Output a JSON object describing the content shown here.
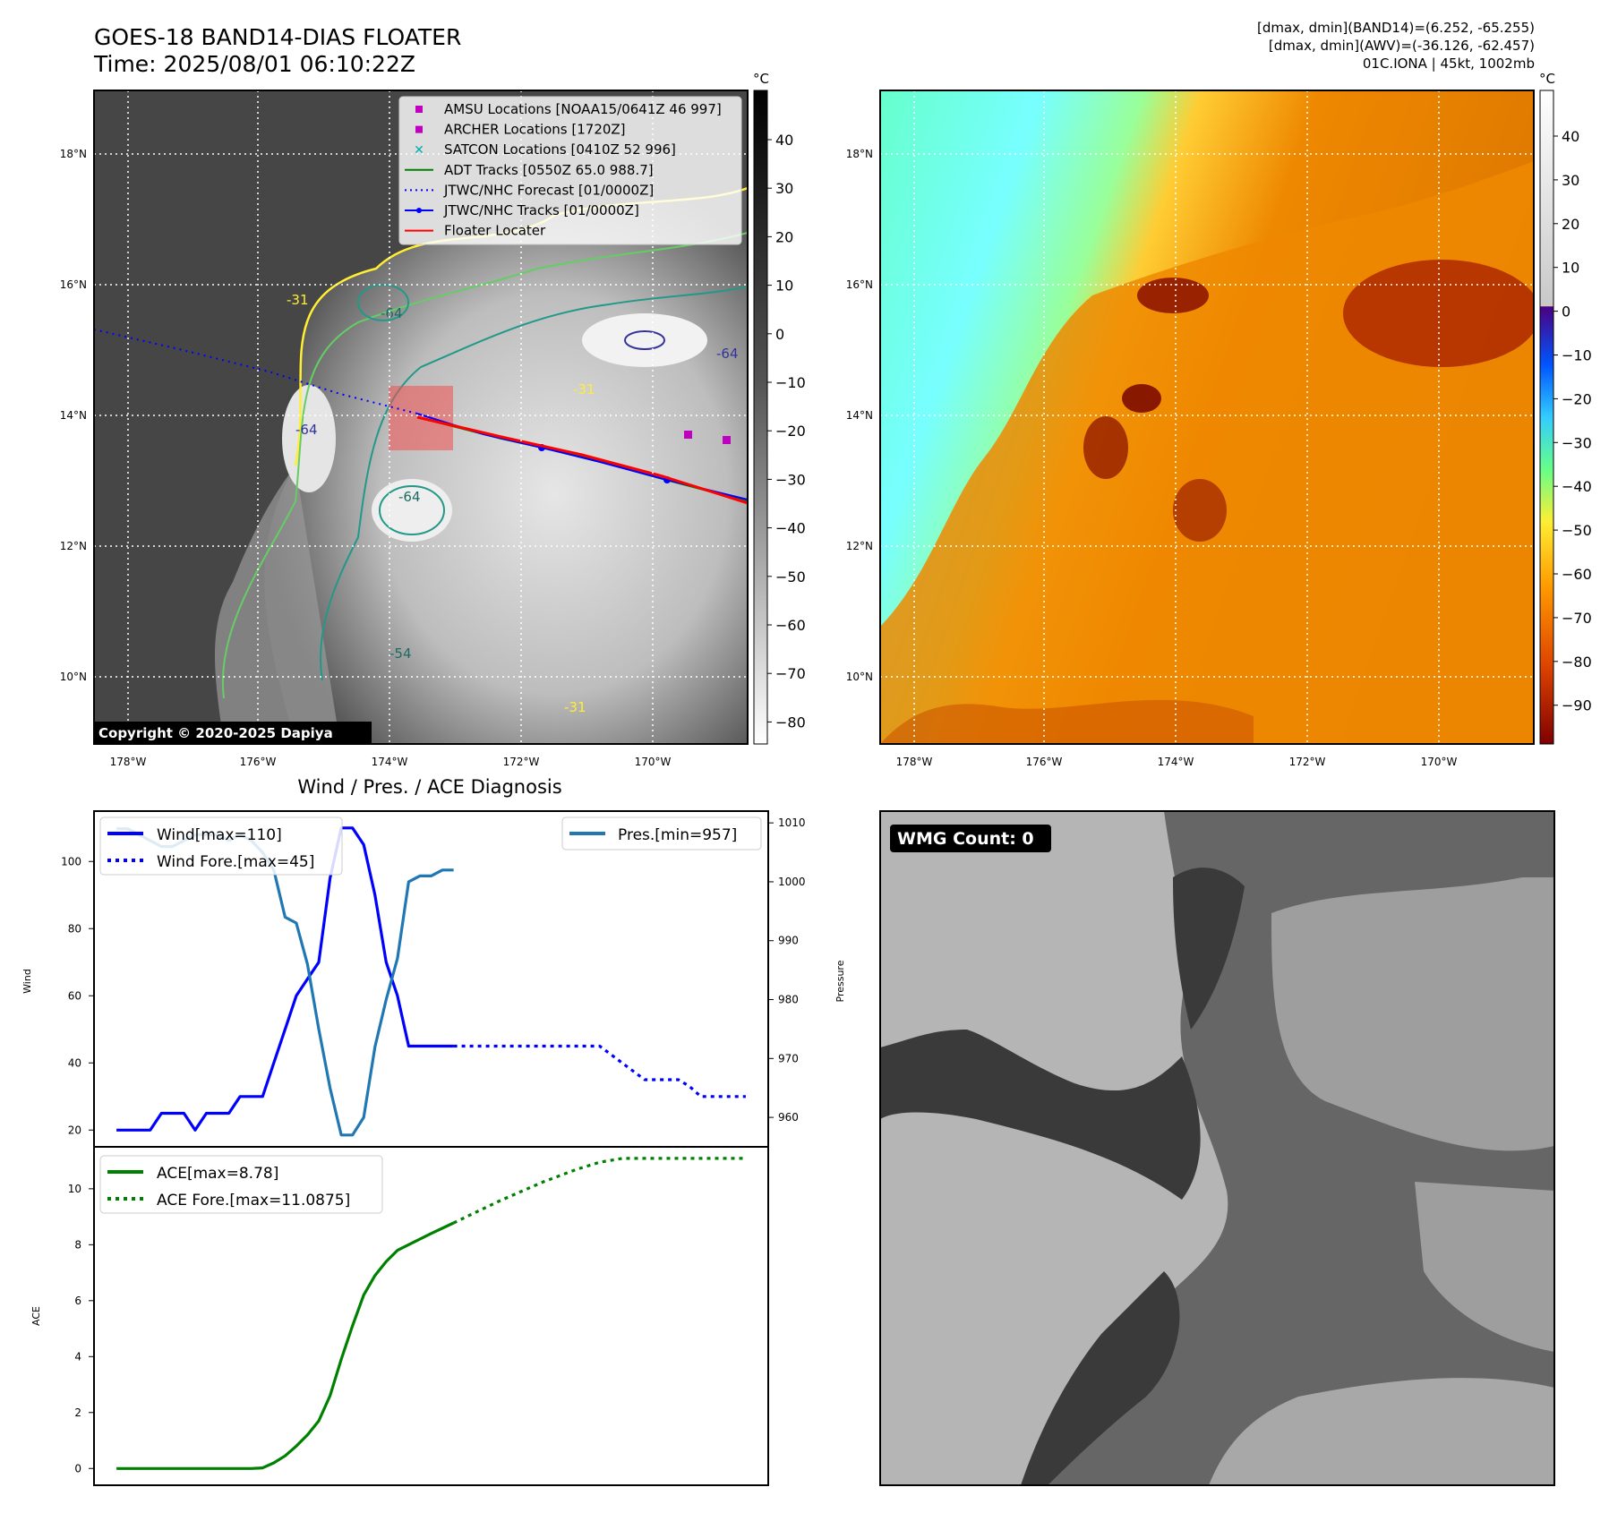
{
  "header": {
    "title": "GOES-18 BAND14-DIAS FLOATER",
    "time": "Time: 2025/08/01 06:10:22Z",
    "info_lines": [
      "[dmax, dmin](BAND14)=(6.252, -65.255)",
      "[dmax, dmin](AWV)=(-36.126, -62.457)",
      "01C.IONA | 45kt, 1002mb"
    ]
  },
  "copyright": "Copyright © 2020-2025 Dapiya",
  "colors": {
    "adt": "#008000",
    "forecast": "#0000ff",
    "track": "#0000ff",
    "locater": "#ff0000",
    "amsu": "#c000c0",
    "satcon": "#00b0b0",
    "pres": "#1f77b4",
    "ace": "#008000"
  },
  "map": {
    "lon_ticks": [
      "178°W",
      "176°W",
      "174°W",
      "172°W",
      "170°W"
    ],
    "lat_ticks": [
      "18°N",
      "16°N",
      "14°N",
      "12°N",
      "10°N"
    ],
    "legend": [
      {
        "label": "AMSU Locations [NOAA15/0641Z 46 997]",
        "symbol": "square",
        "color": "#c000c0"
      },
      {
        "label": "ARCHER Locations [1720Z]",
        "symbol": "square",
        "color": "#c000c0"
      },
      {
        "label": "SATCON Locations [0410Z 52 996]",
        "symbol": "x",
        "color": "#00b0b0"
      },
      {
        "label": "ADT Tracks [0550Z 65.0 988.7]",
        "symbol": "line",
        "color": "#008000"
      },
      {
        "label": "JTWC/NHC Forecast [01/0000Z]",
        "symbol": "dotted",
        "color": "#0000ff"
      },
      {
        "label": "JTWC/NHC Tracks [01/0000Z]",
        "symbol": "line-dot",
        "color": "#0000ff"
      },
      {
        "label": "Floater Locater",
        "symbol": "line",
        "color": "#ff0000"
      }
    ],
    "contour_labels": [
      "-31",
      "-64",
      "-64",
      "-64",
      "-54",
      "-31",
      "-31",
      "-64"
    ]
  },
  "colorbar_left": {
    "unit": "°C",
    "ticks": [
      "40",
      "30",
      "20",
      "10",
      "0",
      "−10",
      "−20",
      "−30",
      "−40",
      "−50",
      "−60",
      "−70",
      "−80"
    ]
  },
  "colorbar_right": {
    "unit": "°C",
    "ticks": [
      "40",
      "30",
      "20",
      "10",
      "0",
      "−10",
      "−20",
      "−30",
      "−40",
      "−50",
      "−60",
      "−70",
      "−80",
      "−90"
    ]
  },
  "wmg_panel": {
    "label": "WMG Count: 0"
  },
  "chart_data": [
    {
      "type": "line",
      "title": "Wind / Pres. / ACE Diagnosis",
      "ylabel": "Wind",
      "y2label": "Pressure",
      "ylim": [
        15,
        115
      ],
      "y2lim": [
        955,
        1012
      ],
      "series": [
        {
          "name": "Wind[max=110]",
          "axis": "left",
          "style": "solid",
          "color": "#0000ff",
          "x": [
            0,
            1,
            2,
            3,
            4,
            5,
            6,
            7,
            8,
            9,
            10,
            11,
            12,
            13,
            14,
            15,
            16,
            17,
            18,
            19,
            20,
            21,
            22,
            23,
            24,
            25,
            26,
            27,
            28,
            29,
            30
          ],
          "y": [
            20,
            20,
            20,
            20,
            25,
            25,
            25,
            20,
            25,
            25,
            25,
            30,
            30,
            30,
            40,
            50,
            60,
            65,
            70,
            95,
            110,
            110,
            105,
            90,
            70,
            60,
            45,
            45,
            45,
            45,
            45
          ]
        },
        {
          "name": "Wind Fore.[max=45]",
          "axis": "left",
          "style": "dotted",
          "color": "#0000ff",
          "x": [
            30,
            34,
            38,
            41,
            43,
            45,
            47,
            48,
            50,
            51,
            52,
            54,
            56
          ],
          "y": [
            45,
            45,
            45,
            45,
            45,
            40,
            35,
            35,
            35,
            33,
            30,
            30,
            30
          ]
        },
        {
          "name": "Pres.[min=957]",
          "axis": "right",
          "style": "solid",
          "color": "#1f77b4",
          "x": [
            0,
            1,
            2,
            3,
            4,
            5,
            6,
            7,
            8,
            9,
            10,
            11,
            12,
            13,
            14,
            15,
            16,
            17,
            18,
            19,
            20,
            21,
            22,
            23,
            24,
            25,
            26,
            27,
            28,
            29,
            30
          ],
          "y": [
            1009,
            1009,
            1008,
            1007,
            1006,
            1006,
            1007,
            1008,
            1008,
            1008,
            1007,
            1008,
            1007,
            1005,
            1002,
            994,
            993,
            986,
            975,
            965,
            957,
            957,
            960,
            972,
            980,
            987,
            1000,
            1001,
            1001,
            1002,
            1002
          ]
        }
      ],
      "yticks": [
        20,
        40,
        60,
        80,
        100
      ],
      "y2ticks": [
        960,
        970,
        980,
        990,
        1000,
        1010
      ]
    },
    {
      "type": "line",
      "ylabel": "ACE",
      "ylim": [
        -0.6,
        11.5
      ],
      "series": [
        {
          "name": "ACE[max=8.78]",
          "style": "solid",
          "color": "#008000",
          "x": [
            0,
            2,
            4,
            6,
            8,
            10,
            12,
            13,
            14,
            15,
            16,
            17,
            18,
            19,
            20,
            21,
            22,
            23,
            24,
            25,
            26,
            28,
            30
          ],
          "y": [
            0,
            0,
            0,
            0,
            0,
            0,
            0,
            0.02,
            0.2,
            0.45,
            0.8,
            1.2,
            1.7,
            2.6,
            3.9,
            5.1,
            6.2,
            6.9,
            7.4,
            7.8,
            8.0,
            8.4,
            8.78
          ]
        },
        {
          "name": "ACE Fore.[max=11.0875]",
          "style": "dotted",
          "color": "#008000",
          "x": [
            30,
            34,
            38,
            41,
            43,
            45,
            48,
            50,
            52,
            54,
            56
          ],
          "y": [
            8.78,
            9.55,
            10.25,
            10.7,
            10.95,
            11.0875,
            11.0875,
            11.0875,
            11.0875,
            11.0875,
            11.0875
          ]
        }
      ],
      "yticks": [
        0,
        2,
        4,
        6,
        8,
        10
      ]
    }
  ]
}
